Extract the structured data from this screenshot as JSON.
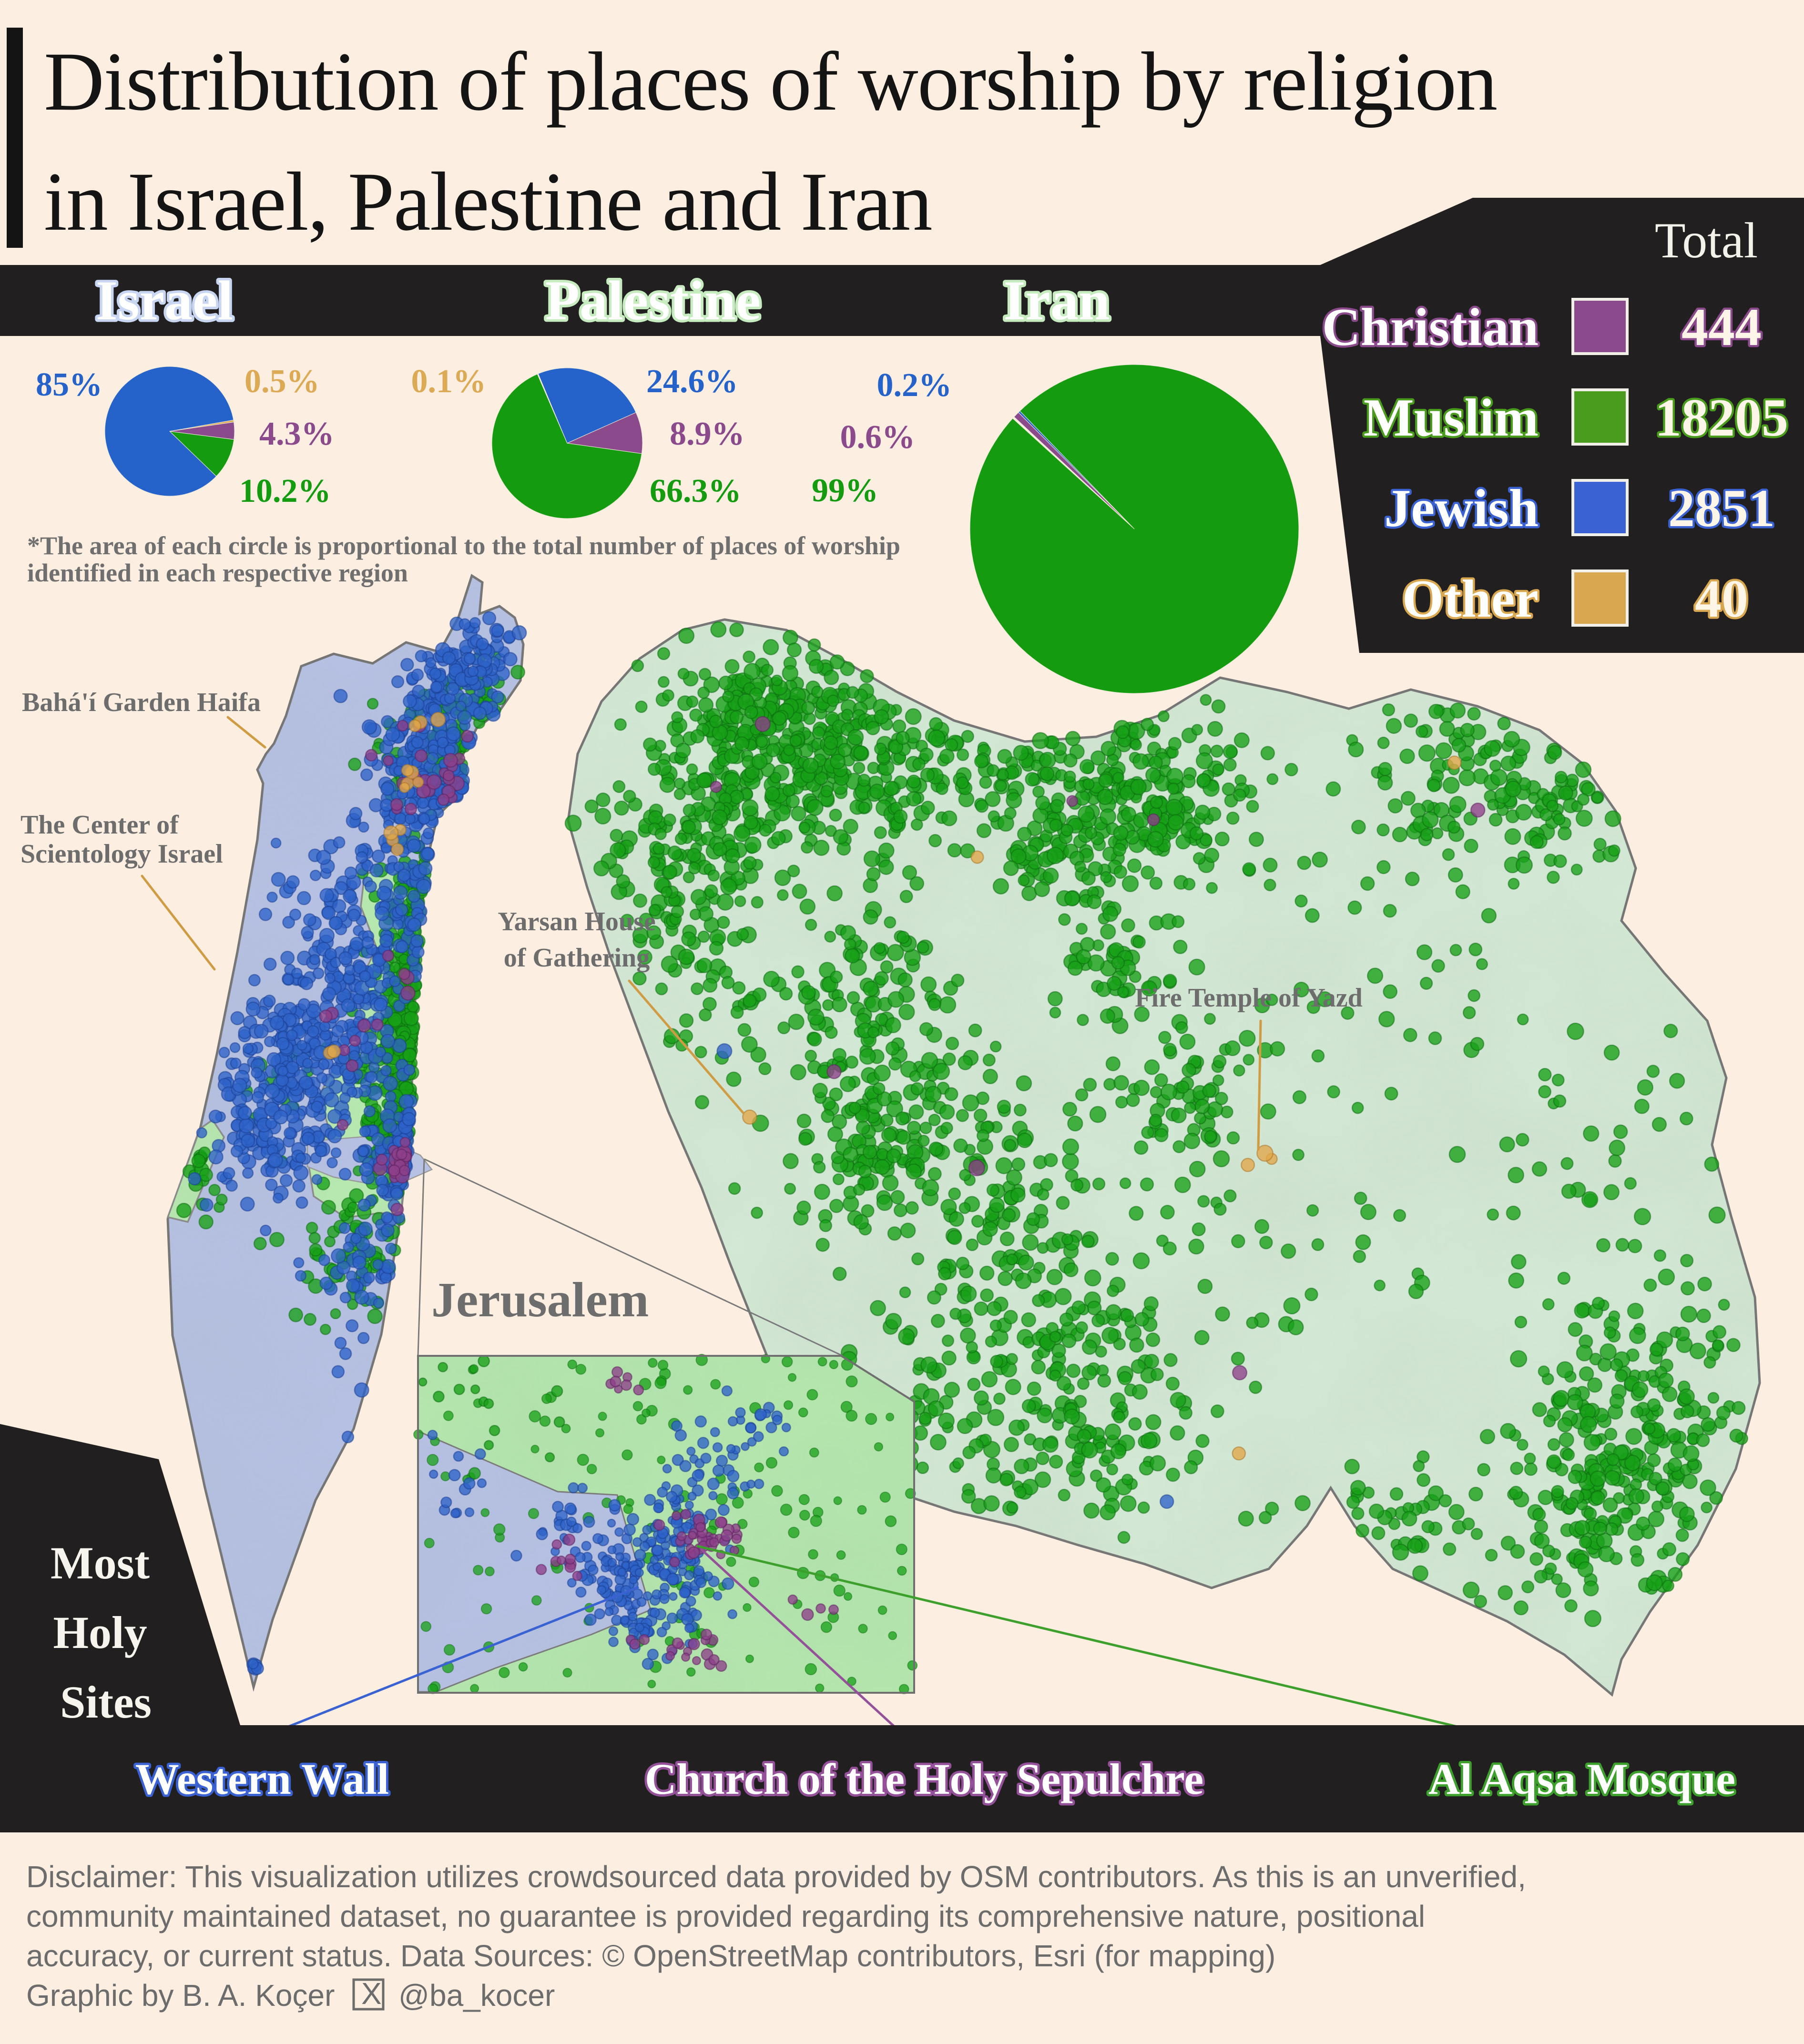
{
  "title": {
    "line1": "Distribution of places of worship by religion",
    "line2": "in Israel, Palestine and Iran"
  },
  "footnote": {
    "line1": "*The area of each circle is proportional to the total number of places of worship",
    "line2": "identified in each respective region"
  },
  "legend": {
    "header": "Total",
    "rows": [
      {
        "label": "Christian",
        "total": "444",
        "color": "#8a4a8c"
      },
      {
        "label": "Muslim",
        "total": "18205",
        "color": "#4a9c1c"
      },
      {
        "label": "Jewish",
        "total": "2851",
        "color": "#3a62d2"
      },
      {
        "label": "Other",
        "total": "40",
        "color": "#d9a74f"
      }
    ]
  },
  "chart_data": [
    {
      "type": "pie",
      "title": "Israel",
      "halo": "#c8d6f2",
      "legend_position": "right",
      "slices": [
        {
          "name": "Jewish",
          "value": 85,
          "label": "85%",
          "color": "#2563cb"
        },
        {
          "name": "Other",
          "value": 0.5,
          "label": "0.5%",
          "color": "#dcaa55"
        },
        {
          "name": "Christian",
          "value": 4.3,
          "label": "4.3%",
          "color": "#8a4a8c"
        },
        {
          "name": "Muslim",
          "value": 10.2,
          "label": "10.2%",
          "color": "#149b10"
        }
      ]
    },
    {
      "type": "pie",
      "title": "Palestine",
      "halo": "#c6ecc0",
      "legend_position": "right",
      "slices": [
        {
          "name": "Other",
          "value": 0.1,
          "label": "0.1%",
          "color": "#dcaa55"
        },
        {
          "name": "Jewish",
          "value": 24.6,
          "label": "24.6%",
          "color": "#2563cb"
        },
        {
          "name": "Christian",
          "value": 8.9,
          "label": "8.9%",
          "color": "#8a4a8c"
        },
        {
          "name": "Muslim",
          "value": 66.3,
          "label": "66.3%",
          "color": "#149b10"
        }
      ]
    },
    {
      "type": "pie",
      "title": "Iran",
      "halo": "#c6ecc0",
      "legend_position": "left",
      "slices": [
        {
          "name": "Christian",
          "value": 0.6,
          "label": "0.6%",
          "color": "#8a4a8c"
        },
        {
          "name": "Jewish",
          "value": 0.2,
          "label": "0.2%",
          "color": "#2563cb"
        },
        {
          "name": "Muslim",
          "value": 99,
          "label": "99%",
          "color": "#149b10"
        }
      ]
    }
  ],
  "map_annotations": {
    "israel": [
      {
        "label": "Bahá'í Garden Haifa"
      },
      {
        "line1": "The Center of",
        "line2": "Scientology Israel"
      }
    ],
    "iran": [
      {
        "line1": "Yarsan House",
        "line2": "of Gathering"
      },
      {
        "label": "Fire Temple of Yazd"
      }
    ]
  },
  "inset": {
    "title": "Jerusalem"
  },
  "holy_sites": {
    "panel_line1": "Most",
    "panel_line2": "Holy",
    "panel_line3": "Sites",
    "sites": [
      {
        "name": "Western Wall",
        "color": "#3a62d2"
      },
      {
        "name": "Church of the Holy Sepulchre",
        "color": "#94519a"
      },
      {
        "name": "Al Aqsa Mosque",
        "color": "#3da02c"
      }
    ]
  },
  "disclaimer": {
    "line1": "Disclaimer: This visualization utilizes crowdsourced data provided by OSM contributors. As this is an unverified,",
    "line2": "community maintained dataset, no guarantee is provided regarding its comprehensive nature, positional",
    "line3": "accuracy, or current status. Data Sources: © OpenStreetMap contributors, Esri (for mapping)",
    "credit": "Graphic by B. A. Koçer",
    "x_label": "X",
    "handle": "@ba_kocer"
  },
  "colors": {
    "background": "#fceee0",
    "panel": "#211f1f",
    "israel_fill": "#b6c1e4",
    "palestine_fill": "#b7eab0",
    "iran_fill": "#d4ead6",
    "inset_fill": "#b4e7ad",
    "leader_line": "#cf9c43",
    "dot_jewish": "#2e63c8",
    "dot_muslim": "#17a017",
    "dot_christian": "#8d4089",
    "dot_other": "#e2a84a"
  }
}
